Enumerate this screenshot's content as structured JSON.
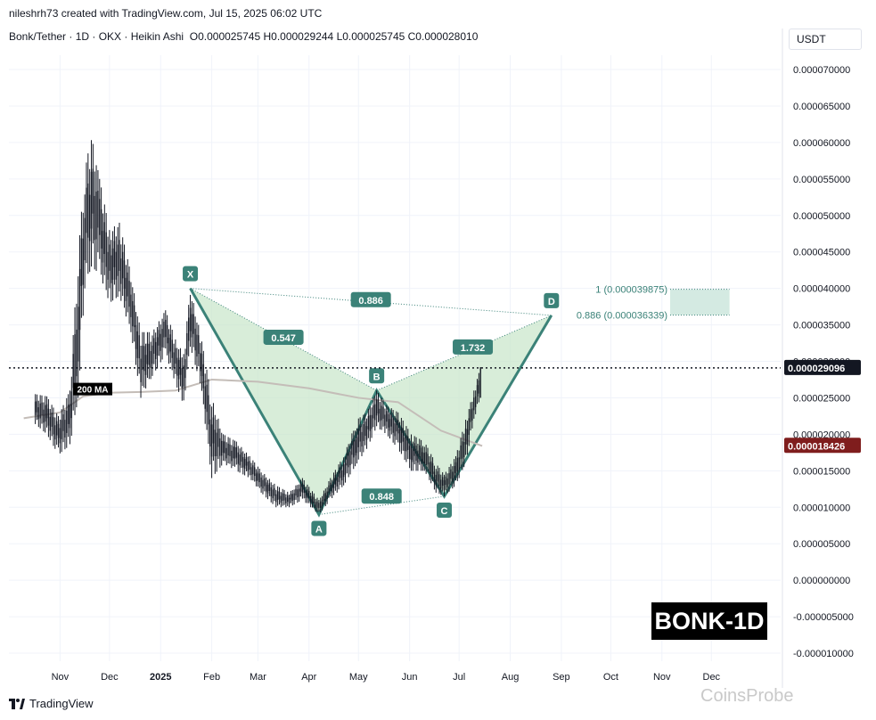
{
  "header": {
    "attribution": "nileshrh73 created with TradingView.com, Jul 15, 2025 06:02 UTC",
    "symbol": "Bonk/Tether · 1D · OKX · Heikin Ashi",
    "ohlc": "O0.000025745 H0.000029244 L0.000025745 C0.000028010"
  },
  "currency_label": "USDT",
  "watermark": "BONK-1D",
  "footer": {
    "brand": "TradingView",
    "site_watermark": "CoinsProbe"
  },
  "colors": {
    "pattern_stroke": "#3b8278",
    "pattern_fill": "#c8e6c9",
    "label_bg": "#3b8278",
    "ma_line": "#c4bdb8",
    "candle": "#131722",
    "price_badge": "#131722",
    "ma_badge": "#7f1d1d",
    "fib_zone": "#cfe8df"
  },
  "chart_data": {
    "type": "candlestick",
    "title": "Bonk/Tether · 1D · OKX · Heikin Ashi",
    "x_tick_labels": [
      "Nov",
      "Dec",
      "2025",
      "Feb",
      "Mar",
      "Apr",
      "May",
      "Jun",
      "Jul",
      "Aug",
      "Sep",
      "Oct",
      "Nov",
      "Dec"
    ],
    "y_tick_labels": [
      "0.000070000",
      "0.000065000",
      "0.000060000",
      "0.000055000",
      "0.000050000",
      "0.000045000",
      "0.000040000",
      "0.000035000",
      "0.000030000",
      "0.000025000",
      "0.000020000",
      "0.000015000",
      "0.000010000",
      "0.000005000",
      "0.000000000",
      "-0.000005000",
      "-0.000010000"
    ],
    "ylim": [
      -1.1e-05,
      7.3e-05
    ],
    "current_price": {
      "value": 2.9096e-05,
      "label": "0.000029096"
    },
    "ma200": {
      "label": "200 MA",
      "value": 1.8426e-05,
      "value_label": "0.000018426"
    },
    "harmonic_pattern": {
      "points": [
        {
          "label": "X",
          "date": "2025-01-19",
          "price": 4e-05
        },
        {
          "label": "A",
          "date": "2025-04-07",
          "price": 9e-06
        },
        {
          "label": "B",
          "date": "2025-05-12",
          "price": 2.6e-05
        },
        {
          "label": "C",
          "date": "2025-06-22",
          "price": 1.15e-05
        },
        {
          "label": "D",
          "date": "2025-08-26",
          "price": 3.63e-05
        }
      ],
      "ratios": [
        {
          "label": "0.547",
          "between": "XA-B"
        },
        {
          "label": "0.848",
          "between": "AB-C"
        },
        {
          "label": "1.732",
          "between": "BC-D"
        },
        {
          "label": "0.886",
          "between": "XA-D"
        }
      ]
    },
    "fib_levels": [
      {
        "label": "1 (0.000039875)",
        "value": 3.9875e-05
      },
      {
        "label": "0.886 (0.000036339)",
        "value": 3.6339e-05
      }
    ],
    "candles_approx": [
      {
        "date": "2024-10-17",
        "low": 2.14e-05,
        "high": 2.55e-05
      },
      {
        "date": "2024-10-24",
        "low": 2e-05,
        "high": 2.52e-05
      },
      {
        "date": "2024-10-31",
        "low": 1.72e-05,
        "high": 2.25e-05
      },
      {
        "date": "2024-11-07",
        "low": 1.85e-05,
        "high": 2.6e-05
      },
      {
        "date": "2024-11-12",
        "low": 2.5e-05,
        "high": 4.5e-05
      },
      {
        "date": "2024-11-16",
        "low": 4e-05,
        "high": 5.6e-05
      },
      {
        "date": "2024-11-20",
        "low": 4.3e-05,
        "high": 6.1e-05
      },
      {
        "date": "2024-11-25",
        "low": 4.2e-05,
        "high": 5.5e-05
      },
      {
        "date": "2024-12-01",
        "low": 3.8e-05,
        "high": 4.8e-05
      },
      {
        "date": "2024-12-07",
        "low": 3.9e-05,
        "high": 4.9e-05
      },
      {
        "date": "2024-12-14",
        "low": 3.4e-05,
        "high": 4.2e-05
      },
      {
        "date": "2024-12-20",
        "low": 2.5e-05,
        "high": 3.4e-05
      },
      {
        "date": "2024-12-27",
        "low": 2.8e-05,
        "high": 3.4e-05
      },
      {
        "date": "2025-01-04",
        "low": 3.1e-05,
        "high": 3.7e-05
      },
      {
        "date": "2025-01-10",
        "low": 2.7e-05,
        "high": 3.3e-05
      },
      {
        "date": "2025-01-15",
        "low": 2.4e-05,
        "high": 3.1e-05
      },
      {
        "date": "2025-01-19",
        "low": 3.2e-05,
        "high": 4e-05
      },
      {
        "date": "2025-01-25",
        "low": 2.7e-05,
        "high": 3.4e-05
      },
      {
        "date": "2025-02-01",
        "low": 1.4e-05,
        "high": 2.5e-05
      },
      {
        "date": "2025-02-08",
        "low": 1.6e-05,
        "high": 2e-05
      },
      {
        "date": "2025-02-16",
        "low": 1.5e-05,
        "high": 1.9e-05
      },
      {
        "date": "2025-02-24",
        "low": 1.4e-05,
        "high": 1.7e-05
      },
      {
        "date": "2025-03-03",
        "low": 1.2e-05,
        "high": 1.5e-05
      },
      {
        "date": "2025-03-12",
        "low": 1e-05,
        "high": 1.3e-05
      },
      {
        "date": "2025-03-20",
        "low": 1e-05,
        "high": 1.2e-05
      },
      {
        "date": "2025-03-28",
        "low": 1.1e-05,
        "high": 1.4e-05
      },
      {
        "date": "2025-04-07",
        "low": 9e-06,
        "high": 1.1e-05
      },
      {
        "date": "2025-04-14",
        "low": 1.1e-05,
        "high": 1.4e-05
      },
      {
        "date": "2025-04-22",
        "low": 1.3e-05,
        "high": 1.7e-05
      },
      {
        "date": "2025-04-30",
        "low": 1.6e-05,
        "high": 2.2e-05
      },
      {
        "date": "2025-05-06",
        "low": 1.8e-05,
        "high": 2.3e-05
      },
      {
        "date": "2025-05-12",
        "low": 2.1e-05,
        "high": 2.6e-05
      },
      {
        "date": "2025-05-18",
        "low": 2e-05,
        "high": 2.4e-05
      },
      {
        "date": "2025-05-25",
        "low": 1.8e-05,
        "high": 2.3e-05
      },
      {
        "date": "2025-06-02",
        "low": 1.5e-05,
        "high": 2e-05
      },
      {
        "date": "2025-06-10",
        "low": 1.5e-05,
        "high": 1.9e-05
      },
      {
        "date": "2025-06-17",
        "low": 1.2e-05,
        "high": 1.6e-05
      },
      {
        "date": "2025-06-22",
        "low": 1.15e-05,
        "high": 1.45e-05
      },
      {
        "date": "2025-06-29",
        "low": 1.3e-05,
        "high": 1.7e-05
      },
      {
        "date": "2025-07-05",
        "low": 1.6e-05,
        "high": 2.2e-05
      },
      {
        "date": "2025-07-10",
        "low": 2.2e-05,
        "high": 2.6e-05
      },
      {
        "date": "2025-07-14",
        "low": 2.5e-05,
        "high": 2.92e-05
      }
    ],
    "ma200_path": [
      {
        "date": "2024-10-10",
        "value": 2.22e-05
      },
      {
        "date": "2024-11-01",
        "value": 2.3e-05
      },
      {
        "date": "2024-11-15",
        "value": 2.52e-05
      },
      {
        "date": "2024-12-01",
        "value": 2.57e-05
      },
      {
        "date": "2024-12-20",
        "value": 2.58e-05
      },
      {
        "date": "2025-01-10",
        "value": 2.6e-05
      },
      {
        "date": "2025-02-01",
        "value": 2.75e-05
      },
      {
        "date": "2025-03-01",
        "value": 2.72e-05
      },
      {
        "date": "2025-04-01",
        "value": 2.63e-05
      },
      {
        "date": "2025-05-01",
        "value": 2.5e-05
      },
      {
        "date": "2025-05-25",
        "value": 2.44e-05
      },
      {
        "date": "2025-06-20",
        "value": 2.05e-05
      },
      {
        "date": "2025-07-15",
        "value": 1.84e-05
      }
    ]
  }
}
